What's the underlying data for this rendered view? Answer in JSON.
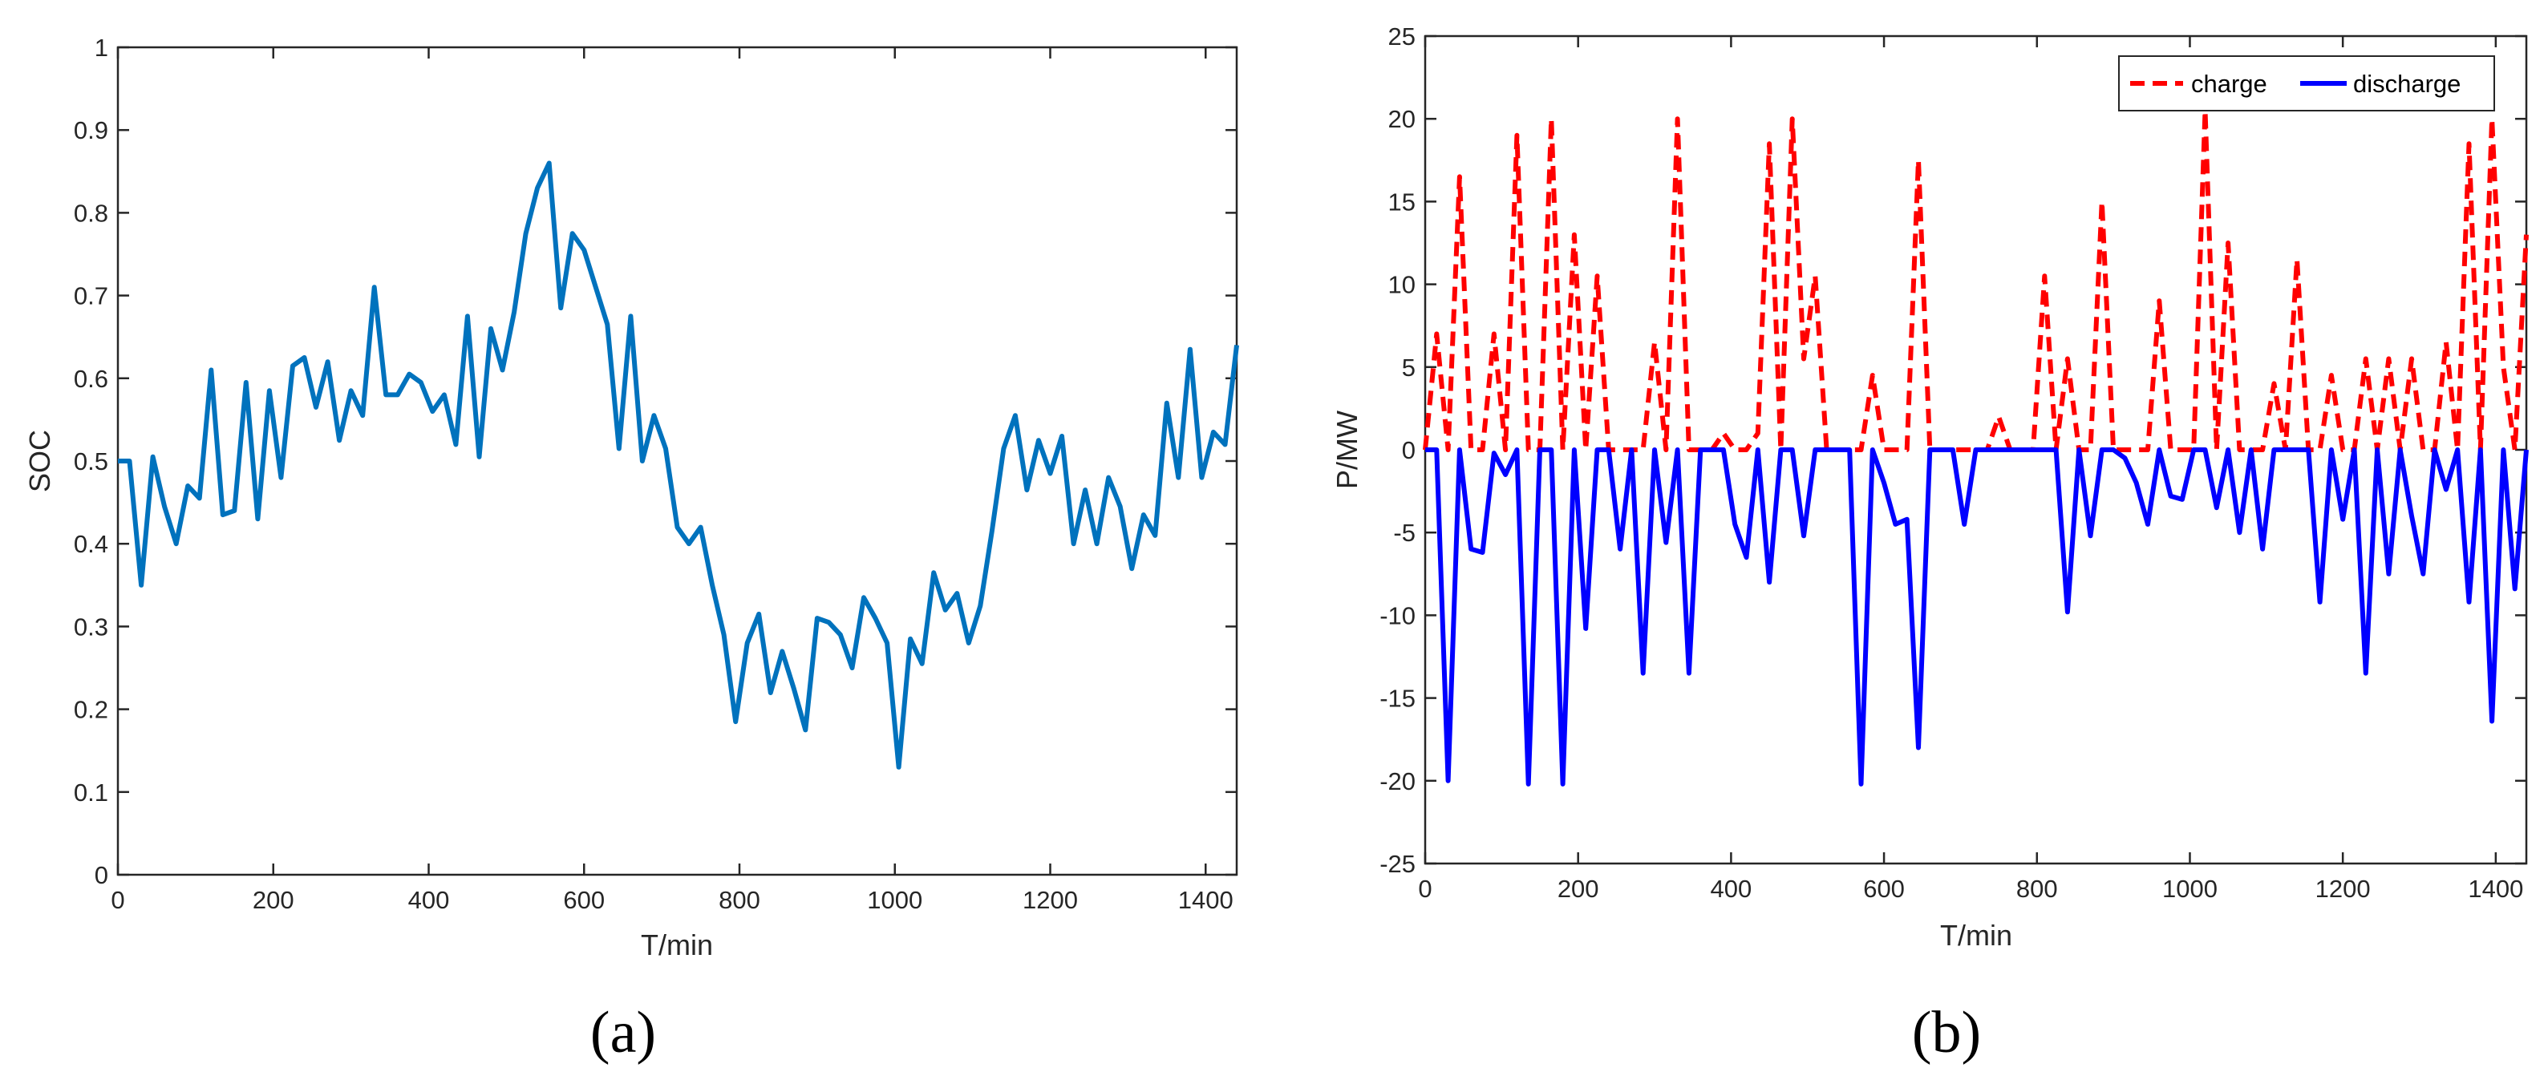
{
  "chart_data": [
    {
      "panel": "(a)",
      "type": "line",
      "xlabel": "T/min",
      "ylabel": "SOC",
      "xlim": [
        0,
        1440
      ],
      "ylim": [
        0,
        1
      ],
      "xticks": [
        0,
        200,
        400,
        600,
        800,
        1000,
        1200,
        1400
      ],
      "yticks": [
        0,
        0.1,
        0.2,
        0.3,
        0.4,
        0.5,
        0.6,
        0.7,
        0.8,
        0.9,
        1
      ],
      "grid": false,
      "colors": {
        "soc": "#0072BD"
      },
      "series": [
        {
          "x": [
            0,
            15,
            30,
            45,
            60,
            75,
            90,
            105,
            120,
            135,
            150,
            165,
            180,
            195,
            210,
            225,
            240,
            255,
            270,
            285,
            300,
            315,
            330,
            345,
            360,
            375,
            390,
            405,
            420,
            435,
            450,
            465,
            480,
            495,
            510,
            525,
            540,
            555,
            570,
            585,
            600,
            615,
            630,
            645,
            660,
            675,
            690,
            705,
            720,
            735,
            750,
            765,
            780,
            795,
            810,
            825,
            840,
            855,
            870,
            885,
            900,
            915,
            930,
            945,
            960,
            975,
            990,
            1005,
            1020,
            1035,
            1050,
            1065,
            1080,
            1095,
            1110,
            1125,
            1140,
            1155,
            1170,
            1185,
            1200,
            1215,
            1230,
            1245,
            1260,
            1275,
            1290,
            1305,
            1320,
            1335,
            1350,
            1365,
            1380,
            1395,
            1410,
            1425,
            1440
          ],
          "values": [
            0.5,
            0.5,
            0.35,
            0.505,
            0.445,
            0.4,
            0.47,
            0.455,
            0.61,
            0.435,
            0.44,
            0.595,
            0.43,
            0.585,
            0.48,
            0.615,
            0.625,
            0.565,
            0.62,
            0.525,
            0.585,
            0.555,
            0.71,
            0.58,
            0.58,
            0.605,
            0.595,
            0.56,
            0.58,
            0.52,
            0.675,
            0.505,
            0.66,
            0.61,
            0.68,
            0.775,
            0.83,
            0.86,
            0.685,
            0.775,
            0.755,
            0.71,
            0.665,
            0.515,
            0.675,
            0.5,
            0.555,
            0.515,
            0.42,
            0.4,
            0.42,
            0.35,
            0.29,
            0.185,
            0.28,
            0.315,
            0.22,
            0.27,
            0.225,
            0.175,
            0.31,
            0.305,
            0.29,
            0.25,
            0.335,
            0.31,
            0.28,
            0.13,
            0.285,
            0.255,
            0.365,
            0.32,
            0.34,
            0.28,
            0.325,
            0.415,
            0.515,
            0.555,
            0.465,
            0.525,
            0.485,
            0.53,
            0.4,
            0.465,
            0.4,
            0.48,
            0.445,
            0.37,
            0.435,
            0.41,
            0.57,
            0.48,
            0.635,
            0.48,
            0.535,
            0.52,
            0.64
          ]
        }
      ]
    },
    {
      "panel": "(b)",
      "type": "line",
      "xlabel": "T/min",
      "ylabel": "P/MW",
      "xlim": [
        0,
        1440
      ],
      "ylim": [
        -25,
        25
      ],
      "xticks": [
        0,
        200,
        400,
        600,
        800,
        1000,
        1200,
        1400
      ],
      "yticks": [
        -25,
        -20,
        -15,
        -10,
        -5,
        0,
        5,
        10,
        15,
        20,
        25
      ],
      "grid": false,
      "legend": {
        "placement": "top-right",
        "entries": [
          "charge",
          "discharge"
        ]
      },
      "colors": {
        "charge": "#FF0000",
        "discharge": "#0000FF"
      },
      "x": [
        0,
        15,
        30,
        45,
        60,
        75,
        90,
        105,
        120,
        135,
        150,
        165,
        180,
        195,
        210,
        225,
        240,
        255,
        270,
        285,
        300,
        315,
        330,
        345,
        360,
        375,
        390,
        405,
        420,
        435,
        450,
        465,
        480,
        495,
        510,
        525,
        540,
        555,
        570,
        585,
        600,
        615,
        630,
        645,
        660,
        675,
        690,
        705,
        720,
        735,
        750,
        765,
        780,
        795,
        810,
        825,
        840,
        855,
        870,
        885,
        900,
        915,
        930,
        945,
        960,
        975,
        990,
        1005,
        1020,
        1035,
        1050,
        1065,
        1080,
        1095,
        1110,
        1125,
        1140,
        1155,
        1170,
        1185,
        1200,
        1215,
        1230,
        1245,
        1260,
        1275,
        1290,
        1305,
        1320,
        1335,
        1350,
        1365,
        1380,
        1395,
        1410,
        1425,
        1440
      ],
      "series": [
        {
          "name": "charge",
          "values": [
            0,
            7,
            0,
            16.5,
            0,
            0,
            7,
            0,
            19,
            0,
            0,
            20,
            0,
            13,
            0,
            10.5,
            0,
            0,
            0,
            0,
            6.5,
            0,
            20,
            0,
            0,
            0,
            1,
            0,
            0,
            1,
            18.5,
            0,
            20,
            5.5,
            10.5,
            0,
            0,
            0,
            0,
            4.5,
            0,
            0,
            0,
            17.5,
            0,
            0,
            0,
            0,
            0,
            0,
            2,
            0,
            0,
            0,
            10.5,
            0,
            5.5,
            0,
            0,
            15,
            0,
            0,
            0,
            0,
            9,
            0,
            0,
            0,
            20.5,
            0,
            12.5,
            0,
            0,
            0,
            4,
            0,
            11.5,
            0,
            0,
            4.5,
            0,
            0,
            5.5,
            0,
            5.5,
            0,
            5.5,
            0,
            0,
            6.5,
            0,
            18.5,
            0,
            20,
            5,
            0,
            13
          ]
        },
        {
          "name": "discharge",
          "values": [
            0,
            0,
            -20,
            0,
            -6,
            -6.2,
            -0.2,
            -1.5,
            0,
            -20.2,
            0,
            0,
            -20.2,
            0,
            -10.8,
            0,
            0,
            -6,
            0,
            -13.5,
            0,
            -5.6,
            0,
            -13.5,
            0,
            0,
            0,
            -4.5,
            -6.5,
            0,
            -8,
            0,
            0,
            -5.2,
            0,
            0,
            0,
            0,
            -20.2,
            0,
            -2,
            -4.5,
            -4.2,
            -18,
            0,
            0,
            0,
            -4.5,
            0,
            0,
            0,
            0,
            0,
            0,
            0,
            0,
            -9.8,
            0,
            -5.2,
            0,
            0,
            -0.5,
            -2,
            -4.5,
            0,
            -2.8,
            -3,
            0,
            0,
            -3.5,
            0,
            -5,
            0,
            -6,
            0,
            0,
            0,
            0,
            -9.2,
            0,
            -4.2,
            0,
            -13.5,
            0,
            -7.5,
            0,
            -4,
            -7.5,
            0,
            -2.4,
            0,
            -9.2,
            0,
            -16.4,
            0,
            -8.4,
            0
          ]
        }
      ]
    }
  ],
  "panel_labels": {
    "a": "(a)",
    "b": "(b)"
  }
}
